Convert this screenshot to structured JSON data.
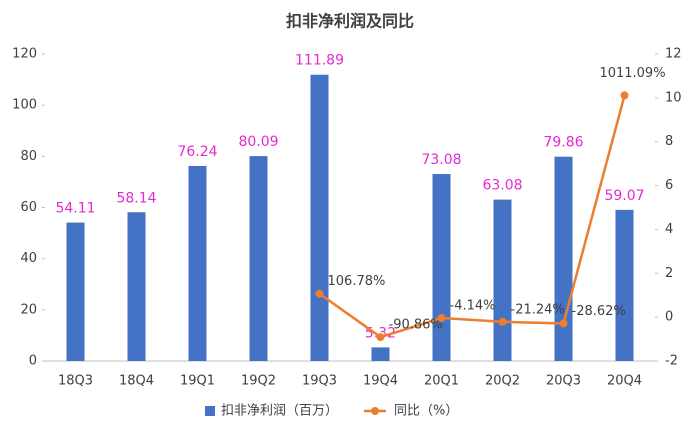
{
  "chart_data": {
    "type": "bar_line",
    "title": "扣非净利润及同比",
    "categories": [
      "18Q3",
      "18Q4",
      "19Q1",
      "19Q2",
      "19Q3",
      "19Q4",
      "20Q1",
      "20Q2",
      "20Q3",
      "20Q4"
    ],
    "series": [
      {
        "name": "扣非净利润（百万）",
        "type": "bar",
        "color": "#4472c4",
        "values": [
          54.11,
          58.14,
          76.24,
          80.09,
          111.89,
          5.32,
          73.08,
          63.08,
          79.86,
          59.07
        ]
      },
      {
        "name": "同比（%）",
        "type": "line",
        "axis": "y2",
        "color": "#ed7d31",
        "values": [
          null,
          null,
          null,
          null,
          1.0678,
          -0.9086,
          -0.0414,
          -0.2124,
          -0.2862,
          10.1109
        ],
        "value_labels": [
          null,
          null,
          null,
          null,
          "106.78%",
          "-90.86%",
          "-4.14%",
          "-21.24%",
          "-28.62%",
          "1011.09%"
        ]
      }
    ],
    "ylim": [
      0,
      120
    ],
    "yticks": [
      0,
      20,
      40,
      60,
      80,
      100,
      120
    ],
    "y2lim": [
      -2,
      12
    ],
    "y2ticks": [
      -2,
      0,
      2,
      4,
      6,
      8,
      10,
      12
    ],
    "legend": "bottom"
  }
}
